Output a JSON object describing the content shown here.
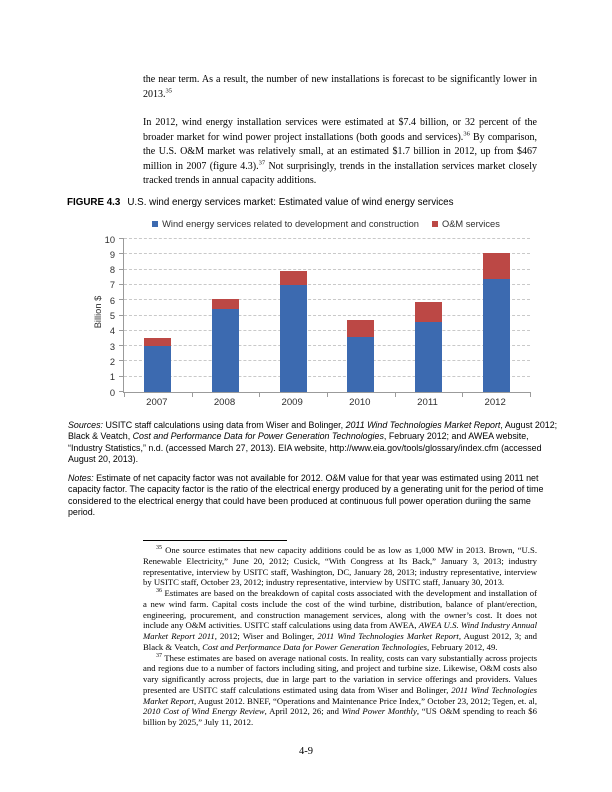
{
  "body": {
    "para1": [
      {
        "t": "the near term. As a result, the number of new installations is forecast to be significantly lower in 2013."
      },
      {
        "t": "35",
        "sup": true
      }
    ],
    "para2": [
      {
        "t": "In 2012, wind energy installation services were estimated at $7.4 billion, or 32 percent of the broader market for wind power project installations (both goods and services)."
      },
      {
        "t": "36",
        "sup": true
      },
      {
        "t": " By comparison, the U.S. O&M market was relatively small, at an estimated $1.7 billion in 2012, up from $467 million in 2007 (figure 4.3)."
      },
      {
        "t": "37",
        "sup": true
      },
      {
        "t": " Not surprisingly, trends in the installation services market closely tracked trends in annual capacity additions."
      }
    ]
  },
  "figure": {
    "label": "FIGURE 4.3",
    "title": "U.S. wind energy services market: Estimated value of wind energy services"
  },
  "chart_data": {
    "type": "bar",
    "stacked": true,
    "title": "U.S. wind energy services market: Estimated value of wind energy services",
    "categories": [
      "2007",
      "2008",
      "2009",
      "2010",
      "2011",
      "2012"
    ],
    "series": [
      {
        "name": "Wind energy services related to development and construction",
        "key": "development-and-construction",
        "color": "#3c6ab0",
        "values": [
          3.0,
          5.4,
          7.0,
          3.6,
          4.6,
          7.4
        ]
      },
      {
        "name": "O&M services",
        "key": "om-services",
        "color": "#bc4845",
        "values": [
          0.5,
          0.7,
          0.9,
          1.1,
          1.3,
          1.7
        ]
      }
    ],
    "totals": [
      3.5,
      6.1,
      7.9,
      4.7,
      5.9,
      9.1
    ],
    "xlabel": "",
    "ylabel": "Billion $",
    "ylim": [
      0,
      10
    ],
    "ytick_step": 1,
    "grid": "horizontal-dashed",
    "legend_position": "top"
  },
  "sources": [
    {
      "t": "Sources:",
      "i": true
    },
    {
      "t": " USITC staff calculations using data from Wiser and Bolinger, "
    },
    {
      "t": "2011 Wind Technologies Market Report",
      "i": true
    },
    {
      "t": ", August 2012; Black & Veatch, "
    },
    {
      "t": "Cost and Performance Data for Power Generation Technologies",
      "i": true
    },
    {
      "t": ", February 2012; and AWEA website, “Industry Statistics,” n.d. (accessed March 27, 2013).  EIA website, http://www.eia.gov/tools/glossary/index.cfm (accessed August 20, 2013)."
    }
  ],
  "notes": [
    {
      "t": "Notes:",
      "i": true
    },
    {
      "t": " Estimate of net capacity factor was not available for 2012. O&M value for that year was estimated using 2011 net capacity factor. The capacity factor is the ratio of the electrical energy produced by a generating unit for the period of time considered to the electrical energy that could have been produced at continuous full power operation duriing the same period."
    }
  ],
  "footnotes": [
    {
      "num": "35",
      "segments": [
        {
          "t": " One source estimates that new capacity additions could be as low as 1,000 MW in 2013. Brown, “U.S. Renewable Electricity,” June 20, 2012; Cusick, “With Congress at Its Back,” January 3, 2013; industry representative, interview by USITC staff, Washington, DC, January 28, 2013; industry representative, interview by USITC staff, October 23, 2012; industry representative, interview by USITC staff, January 30, 2013."
        }
      ]
    },
    {
      "num": "36",
      "segments": [
        {
          "t": " Estimates are based on the breakdown of capital costs associated with the development and installation of a new wind farm. Capital costs include the cost of the wind turbine, distribution, balance of plant/erection, engineering, procurement, and construction management services, along with the owner’s cost. It does not include any O&M activities. USITC staff calculations using data from AWEA, "
        },
        {
          "t": "AWEA U.S. Wind Industry Annual Market Report 2011",
          "i": true
        },
        {
          "t": ", 2012; Wiser and Bolinger, "
        },
        {
          "t": "2011 Wind Technologies Market Report",
          "i": true
        },
        {
          "t": ", August 2012, 3; and Black & Veatch, "
        },
        {
          "t": "Cost and Performance Data for Power Generation Technologies",
          "i": true
        },
        {
          "t": ", February 2012, 49."
        }
      ]
    },
    {
      "num": "37",
      "segments": [
        {
          "t": " These estimates are based on average national costs. In reality, costs can vary substantially across projects and regions due to a number of factors including siting, and project and turbine size. Likewise, O&M costs also vary significantly across projects, due in large part to the variation in service offerings and providers. Values presented are USITC staff calculations estimated using data from Wiser and Bolinger, "
        },
        {
          "t": "2011 Wind Technologies Market Report",
          "i": true
        },
        {
          "t": ", August 2012. BNEF, “Operations and Maintenance Price Index,” October 23, 2012; Tegen, et. al, "
        },
        {
          "t": "2010 Cost of Wind Energy Review",
          "i": true
        },
        {
          "t": ", April 2012, 26; and "
        },
        {
          "t": "Wind Power Monthly",
          "i": true
        },
        {
          "t": ", “US O&M spending to reach $6 billion by 2025,” July 11, 2012."
        }
      ]
    }
  ],
  "page_number": "4-9"
}
